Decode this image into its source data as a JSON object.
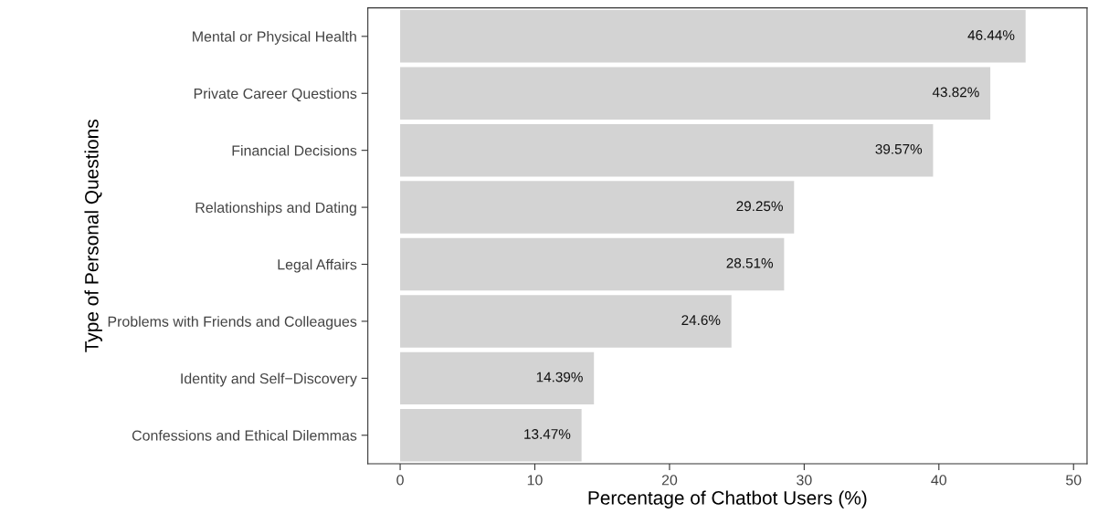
{
  "chart_data": {
    "type": "bar",
    "orientation": "horizontal",
    "xlabel": "Percentage of Chatbot Users (%)",
    "ylabel": "Type of Personal Questions",
    "categories": [
      "Mental or Physical Health",
      "Private Career Questions",
      "Financial Decisions",
      "Relationships and Dating",
      "Legal Affairs",
      "Problems with Friends and Colleagues",
      "Identity and Self−Discovery",
      "Confessions and Ethical Dilemmas"
    ],
    "values": [
      46.44,
      43.82,
      39.57,
      29.25,
      28.51,
      24.6,
      14.39,
      13.47
    ],
    "value_labels": [
      "46.44%",
      "43.82%",
      "39.57%",
      "29.25%",
      "28.51%",
      "24.6%",
      "14.39%",
      "13.47%"
    ],
    "color": "#d3d3d3",
    "xlim": [
      -2.4,
      51
    ],
    "xticks": [
      0,
      10,
      20,
      30,
      40,
      50
    ],
    "grid": false,
    "legend": false
  }
}
